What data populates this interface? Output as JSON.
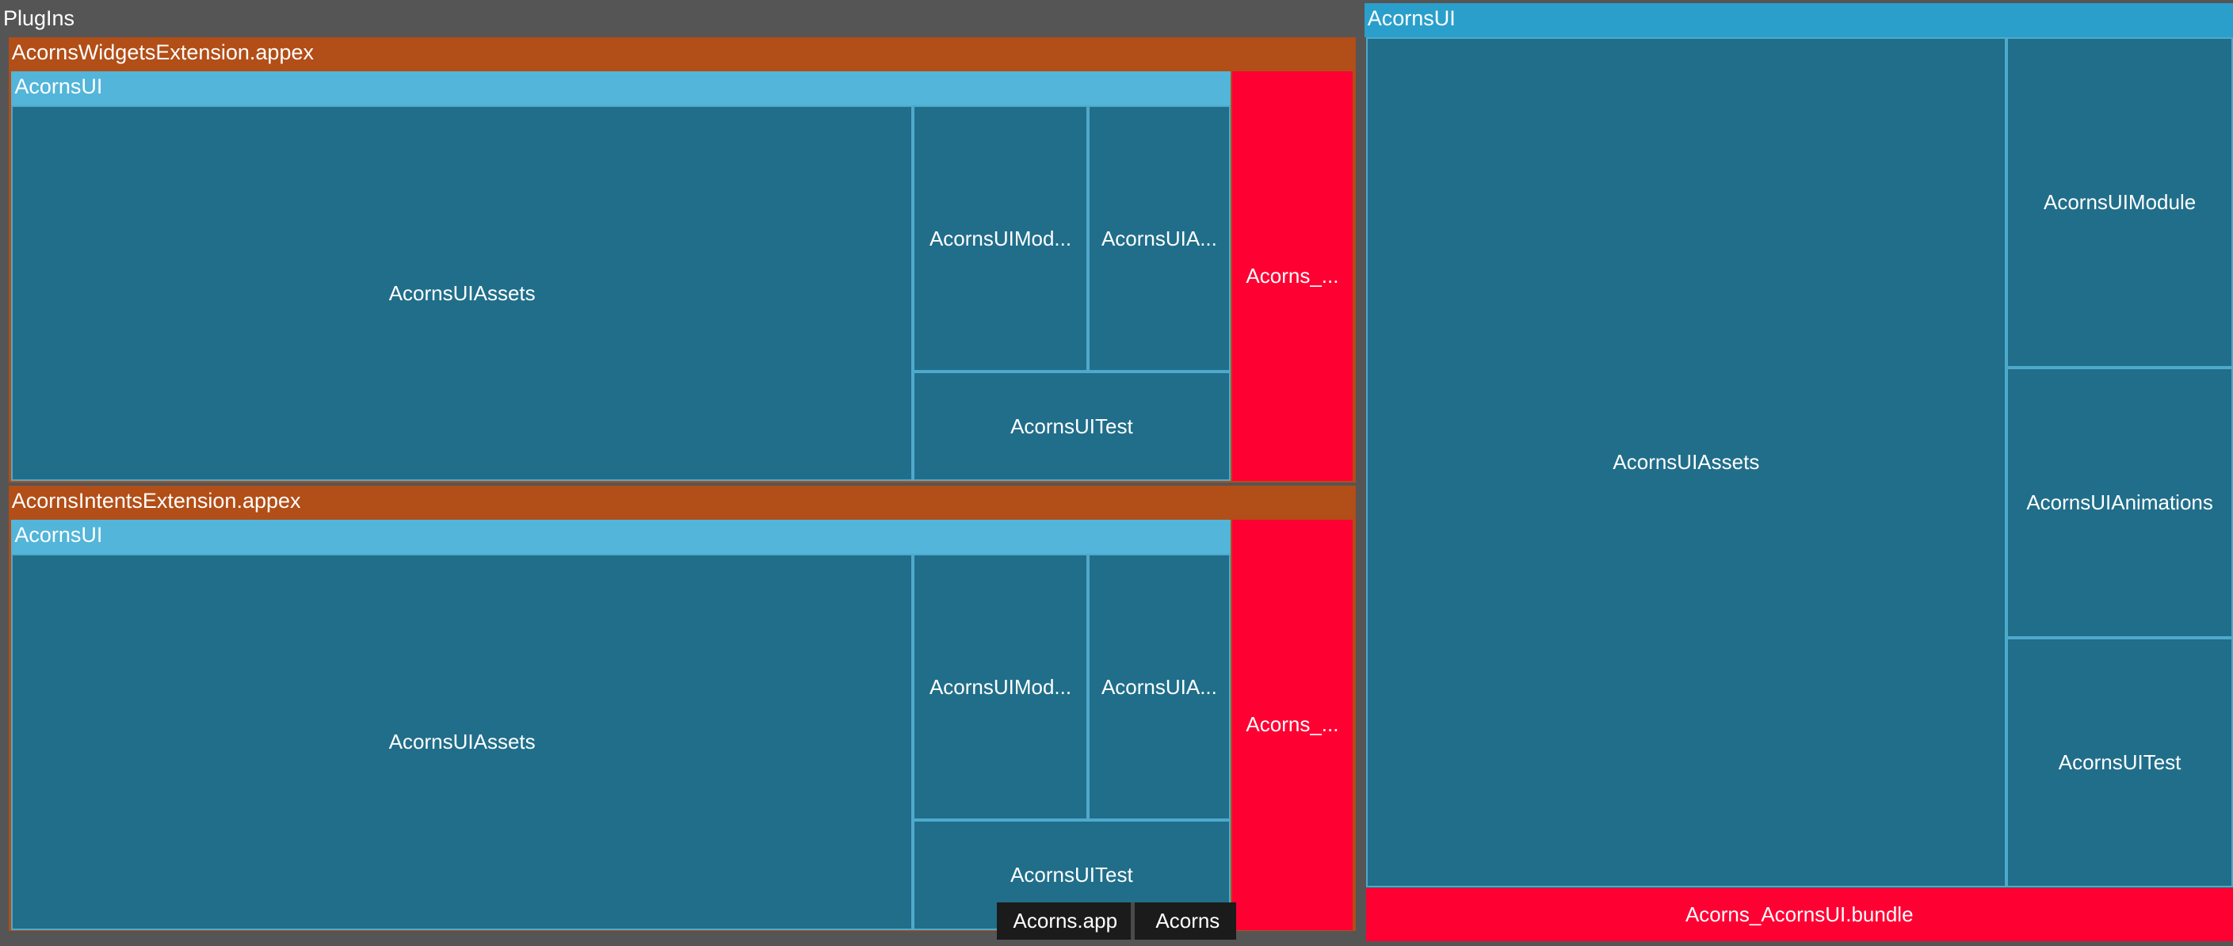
{
  "left": {
    "title": "PlugIns",
    "groups": [
      {
        "title": "AcornsWidgetsExtension.appex",
        "module": {
          "title": "AcornsUI",
          "cells": [
            "AcornsUIAssets",
            "AcornsUIMod...",
            "AcornsUIA...",
            "AcornsUITest"
          ]
        },
        "bundle": "Acorns_..."
      },
      {
        "title": "AcornsIntentsExtension.appex",
        "module": {
          "title": "AcornsUI",
          "cells": [
            "AcornsUIAssets",
            "AcornsUIMod...",
            "AcornsUIA...",
            "AcornsUITest"
          ]
        },
        "bundle": "Acorns_..."
      }
    ]
  },
  "right": {
    "title": "AcornsUI",
    "cells": [
      "AcornsUIAssets",
      "AcornsUIModule",
      "AcornsUIAnimations",
      "AcornsUITest"
    ],
    "bundle": "Acorns_AcornsUI.bundle"
  },
  "breadcrumb": [
    "Acorns.app",
    "Acorns"
  ]
}
